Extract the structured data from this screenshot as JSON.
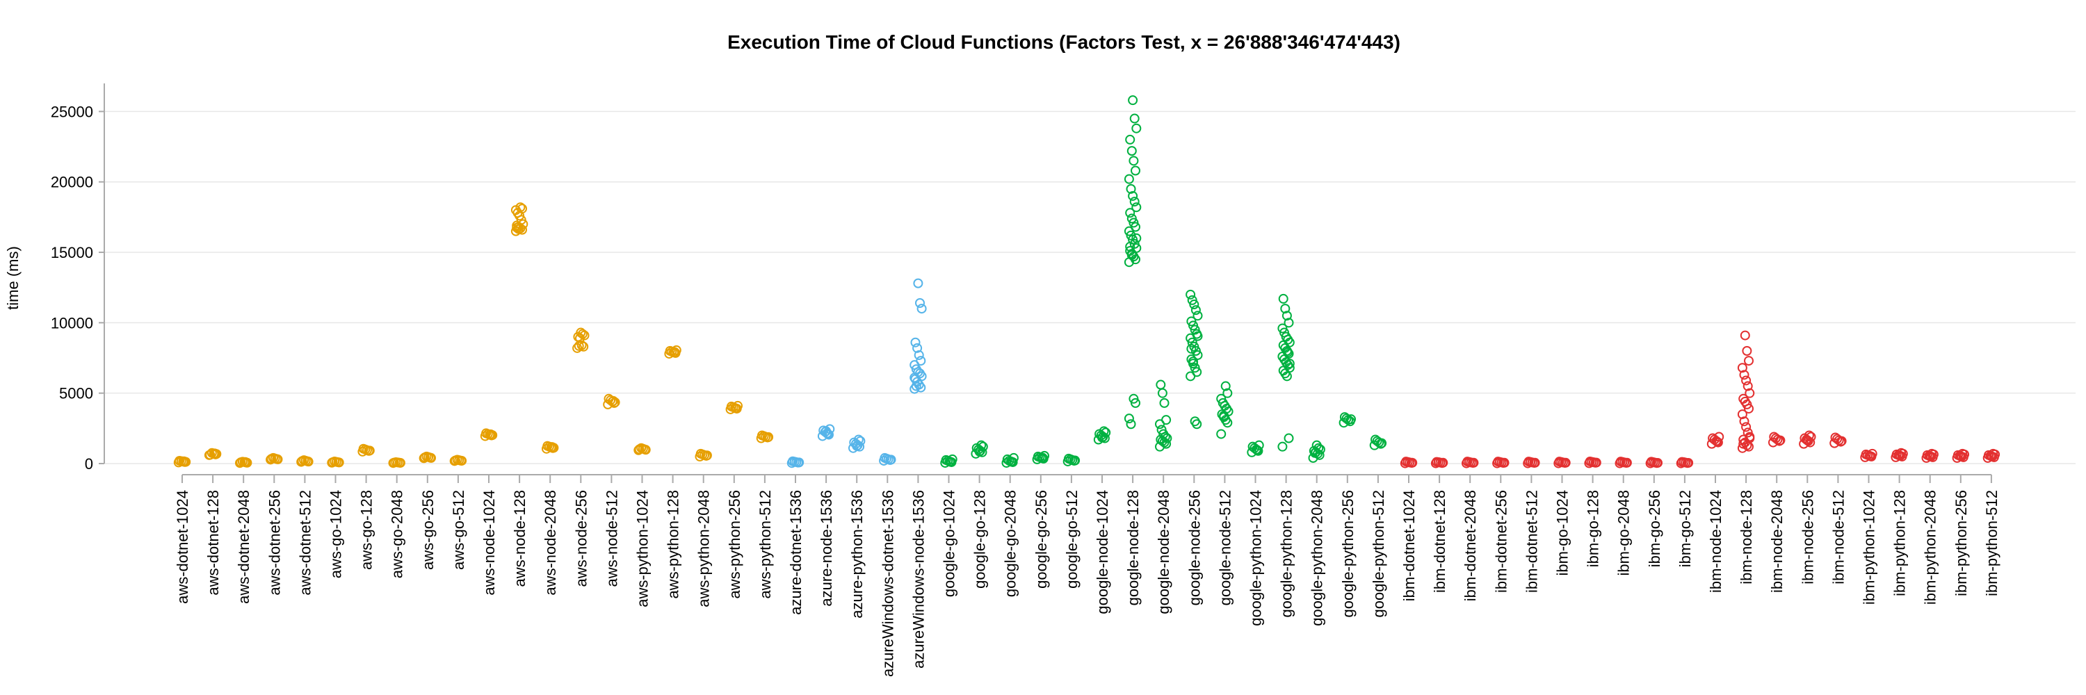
{
  "chart_data": {
    "type": "scatter",
    "title": "Execution Time of Cloud Functions (Factors Test, x = 26'888'346'474'443)",
    "xlabel": "",
    "ylabel": "time (ms)",
    "ylim": [
      0,
      26500
    ],
    "yticks": [
      0,
      5000,
      10000,
      15000,
      20000,
      25000
    ],
    "grid": true,
    "legend": "none",
    "colors": {
      "aws": "#e69f00",
      "azure": "#56b4e9",
      "google": "#00b140",
      "ibm": "#e33030"
    },
    "categories": [
      "aws-dotnet-1024",
      "aws-dotnet-128",
      "aws-dotnet-2048",
      "aws-dotnet-256",
      "aws-dotnet-512",
      "aws-go-1024",
      "aws-go-128",
      "aws-go-2048",
      "aws-go-256",
      "aws-go-512",
      "aws-node-1024",
      "aws-node-128",
      "aws-node-2048",
      "aws-node-256",
      "aws-node-512",
      "aws-python-1024",
      "aws-python-128",
      "aws-python-2048",
      "aws-python-256",
      "aws-python-512",
      "azure-dotnet-1536",
      "azure-node-1536",
      "azure-python-1536",
      "azureWindows-dotnet-1536",
      "azureWindows-node-1536",
      "google-go-1024",
      "google-go-128",
      "google-go-2048",
      "google-go-256",
      "google-go-512",
      "google-node-1024",
      "google-node-128",
      "google-node-2048",
      "google-node-256",
      "google-node-512",
      "google-python-1024",
      "google-python-128",
      "google-python-2048",
      "google-python-256",
      "google-python-512",
      "ibm-dotnet-1024",
      "ibm-dotnet-128",
      "ibm-dotnet-2048",
      "ibm-dotnet-256",
      "ibm-dotnet-512",
      "ibm-go-1024",
      "ibm-go-128",
      "ibm-go-2048",
      "ibm-go-256",
      "ibm-go-512",
      "ibm-node-1024",
      "ibm-node-128",
      "ibm-node-2048",
      "ibm-node-256",
      "ibm-node-512",
      "ibm-python-1024",
      "ibm-python-128",
      "ibm-python-2048",
      "ibm-python-256",
      "ibm-python-512"
    ],
    "series": [
      {
        "values": [
          80,
          110,
          140,
          170,
          200,
          120,
          160
        ]
      },
      {
        "values": [
          600,
          650,
          700,
          750,
          620,
          680,
          720
        ]
      },
      {
        "values": [
          40,
          70,
          100,
          130,
          90,
          60,
          110
        ]
      },
      {
        "values": [
          280,
          320,
          360,
          400,
          340,
          300
        ]
      },
      {
        "values": [
          120,
          160,
          200,
          240,
          180,
          140
        ]
      },
      {
        "values": [
          60,
          90,
          120,
          150,
          100,
          80
        ]
      },
      {
        "values": [
          850,
          900,
          950,
          1000,
          1050,
          920
        ]
      },
      {
        "values": [
          40,
          60,
          80,
          100,
          70,
          50
        ]
      },
      {
        "values": [
          380,
          420,
          460,
          500,
          440,
          400
        ]
      },
      {
        "values": [
          180,
          210,
          240,
          270,
          220,
          200
        ]
      },
      {
        "values": [
          1950,
          2000,
          2050,
          2100,
          2150,
          2020,
          2080
        ]
      },
      {
        "values": [
          16500,
          16600,
          16700,
          16800,
          16900,
          17000,
          17300,
          17600,
          17800,
          18000,
          18100,
          18200,
          16650,
          16750
        ]
      },
      {
        "values": [
          1050,
          1100,
          1150,
          1200,
          1250,
          1120,
          1180
        ]
      },
      {
        "values": [
          8200,
          8300,
          8400,
          8900,
          9000,
          9100,
          9200,
          9300,
          8350
        ]
      },
      {
        "values": [
          4200,
          4300,
          4400,
          4500,
          4600,
          4350,
          4450
        ]
      },
      {
        "values": [
          950,
          1000,
          1050,
          1100,
          1020,
          980
        ]
      },
      {
        "values": [
          7800,
          7850,
          7900,
          7950,
          8000,
          8050,
          7920
        ]
      },
      {
        "values": [
          500,
          550,
          600,
          650,
          700,
          580
        ]
      },
      {
        "values": [
          3850,
          3900,
          3950,
          4000,
          4050,
          4100,
          3920
        ]
      },
      {
        "values": [
          1800,
          1850,
          1900,
          1950,
          2000,
          1880
        ]
      },
      {
        "values": [
          40,
          70,
          100,
          130,
          160,
          80
        ]
      },
      {
        "values": [
          1950,
          2050,
          2150,
          2250,
          2350,
          2450,
          2100,
          2300
        ]
      },
      {
        "values": [
          1100,
          1200,
          1300,
          1400,
          1500,
          1600,
          1700,
          1250
        ]
      },
      {
        "values": [
          200,
          250,
          300,
          350,
          400,
          280
        ]
      },
      {
        "values": [
          5300,
          5400,
          5600,
          5800,
          6000,
          6200,
          6400,
          6500,
          6700,
          7000,
          7300,
          7700,
          8200,
          8600,
          11000,
          11400,
          12800,
          5500,
          6100
        ]
      },
      {
        "values": [
          50,
          100,
          150,
          200,
          250,
          300,
          120
        ]
      },
      {
        "values": [
          700,
          800,
          900,
          1000,
          1100,
          1200,
          1300,
          850
        ]
      },
      {
        "values": [
          50,
          100,
          150,
          200,
          300,
          400,
          120
        ]
      },
      {
        "values": [
          300,
          350,
          400,
          450,
          500,
          550,
          420
        ]
      },
      {
        "values": [
          150,
          200,
          250,
          300,
          350,
          220
        ]
      },
      {
        "values": [
          1700,
          1800,
          1900,
          2000,
          2100,
          2200,
          2300,
          1850
        ]
      },
      {
        "values": [
          14300,
          14500,
          14700,
          14900,
          15100,
          15300,
          15600,
          15900,
          16200,
          16500,
          16800,
          17100,
          17400,
          17800,
          18200,
          18600,
          19000,
          19500,
          20200,
          20800,
          21500,
          22200,
          23000,
          23800,
          24500,
          25800,
          2800,
          3200,
          4300,
          4600,
          14800,
          15400,
          16000
        ]
      },
      {
        "values": [
          1200,
          1400,
          1500,
          1600,
          1700,
          1800,
          1900,
          2100,
          2400,
          2800,
          3100,
          4300,
          5000,
          5600
        ]
      },
      {
        "values": [
          6200,
          6500,
          6800,
          7100,
          7400,
          7700,
          8000,
          8300,
          8600,
          8900,
          9200,
          9500,
          9800,
          10100,
          10500,
          10900,
          11300,
          11600,
          12000,
          2800,
          3000,
          7250,
          8150,
          9050
        ]
      },
      {
        "values": [
          2100,
          2900,
          3100,
          3300,
          3500,
          3700,
          3900,
          4100,
          4300,
          4600,
          5000,
          5500,
          3400
        ]
      },
      {
        "values": [
          800,
          900,
          1000,
          1100,
          1200,
          1300,
          950
        ]
      },
      {
        "values": [
          1200,
          1800,
          6200,
          6400,
          6600,
          6800,
          7000,
          7200,
          7400,
          7600,
          7800,
          8000,
          8200,
          8400,
          8600,
          8800,
          9000,
          9300,
          9600,
          10000,
          10500,
          11000,
          11700,
          7100,
          7900
        ]
      },
      {
        "values": [
          400,
          600,
          700,
          800,
          900,
          1000,
          1100,
          1300,
          750
        ]
      },
      {
        "values": [
          2900,
          3000,
          3100,
          3200,
          3300,
          3150
        ]
      },
      {
        "values": [
          1300,
          1400,
          1500,
          1600,
          1700,
          1450
        ]
      },
      {
        "values": [
          20,
          50,
          80,
          110,
          140,
          60
        ]
      },
      {
        "values": [
          20,
          40,
          70,
          100,
          120,
          60
        ]
      },
      {
        "values": [
          20,
          50,
          80,
          110,
          140,
          60
        ]
      },
      {
        "values": [
          20,
          50,
          80,
          110,
          140,
          60
        ]
      },
      {
        "values": [
          20,
          50,
          80,
          110,
          140,
          60
        ]
      },
      {
        "values": [
          20,
          50,
          80,
          110,
          140,
          60
        ]
      },
      {
        "values": [
          30,
          60,
          90,
          120,
          150,
          70
        ]
      },
      {
        "values": [
          20,
          50,
          80,
          110,
          140,
          60
        ]
      },
      {
        "values": [
          20,
          40,
          70,
          100,
          130,
          50
        ]
      },
      {
        "values": [
          20,
          40,
          70,
          100,
          120,
          50
        ]
      },
      {
        "values": [
          1400,
          1500,
          1600,
          1700,
          1800,
          1900,
          1550
        ]
      },
      {
        "values": [
          1100,
          1200,
          1300,
          1500,
          1700,
          1900,
          2200,
          2600,
          3000,
          3500,
          3900,
          4200,
          4400,
          4600,
          5000,
          5500,
          5900,
          6300,
          6800,
          7300,
          8000,
          9100,
          1400,
          1800
        ]
      },
      {
        "values": [
          1500,
          1600,
          1700,
          1800,
          1900,
          1650
        ]
      },
      {
        "values": [
          1400,
          1500,
          1600,
          1700,
          1800,
          1900,
          2000,
          1650
        ]
      },
      {
        "values": [
          1450,
          1550,
          1650,
          1750,
          1850,
          1600
        ]
      },
      {
        "values": [
          450,
          500,
          550,
          600,
          650,
          700,
          520
        ]
      },
      {
        "values": [
          450,
          500,
          550,
          600,
          650,
          700,
          750,
          580
        ]
      },
      {
        "values": [
          400,
          450,
          500,
          550,
          600,
          650,
          700,
          520
        ]
      },
      {
        "values": [
          400,
          450,
          500,
          550,
          600,
          650,
          700,
          520
        ]
      },
      {
        "values": [
          400,
          450,
          500,
          550,
          600,
          650,
          700,
          520
        ]
      }
    ]
  }
}
